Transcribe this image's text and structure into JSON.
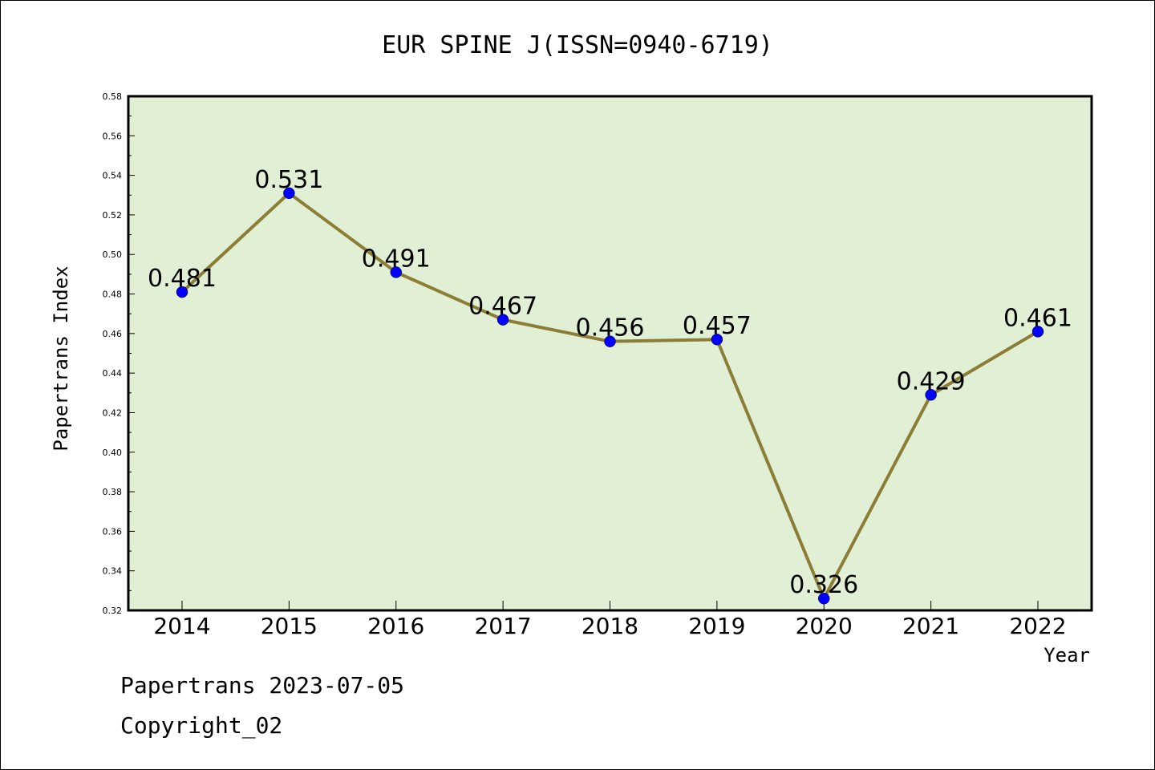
{
  "chart_data": {
    "type": "line",
    "title": "EUR SPINE J(ISSN=0940-6719)",
    "xlabel": "Year",
    "ylabel": "Papertrans Index",
    "categories": [
      "2014",
      "2015",
      "2016",
      "2017",
      "2018",
      "2019",
      "2020",
      "2021",
      "2022"
    ],
    "series": [
      {
        "values": [
          0.481,
          0.531,
          0.491,
          0.467,
          0.456,
          0.457,
          0.326,
          0.429,
          0.461
        ],
        "data_labels": [
          "0.481",
          "0.531",
          "0.491",
          "0.467",
          "0.456",
          "0.457",
          "0.326",
          "0.429",
          "0.461"
        ],
        "line_color": "#8b7d35",
        "marker_color": "#0000ff"
      }
    ],
    "ylim": [
      0.32,
      0.58
    ],
    "yticks": [
      "0.32",
      "0.34",
      "0.36",
      "0.38",
      "0.40",
      "0.42",
      "0.44",
      "0.46",
      "0.48",
      "0.50",
      "0.52",
      "0.54",
      "0.56",
      "0.58"
    ],
    "grid": false,
    "plot_background": "#e1efd4"
  },
  "footer": {
    "line1": "Papertrans 2023-07-05",
    "line2": "Copyright_02"
  }
}
